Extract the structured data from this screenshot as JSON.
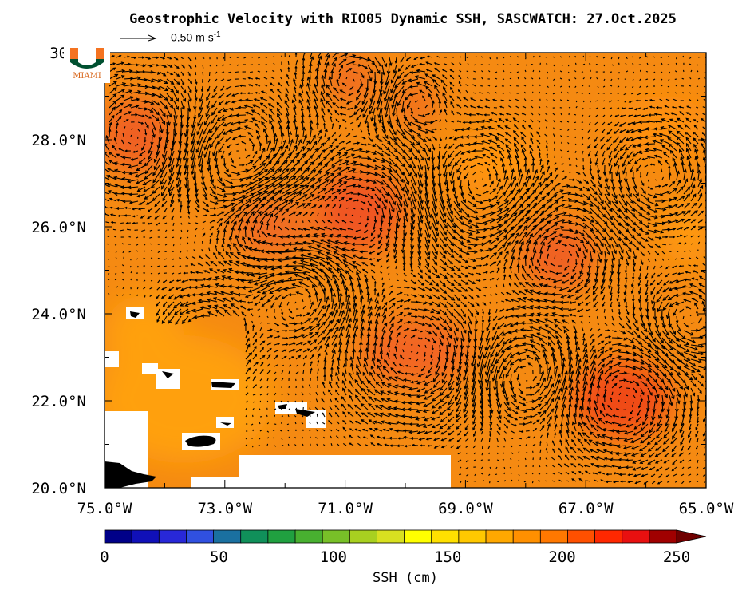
{
  "title": "Geostrophic Velocity with RIO05 Dynamic SSH, SASCWATCH: 27.Oct.2025",
  "reference_vector": {
    "label": "0.50 m s",
    "exponent": "-1"
  },
  "logo": {
    "text": "MIAMI",
    "colors": {
      "orange": "#f47321",
      "green": "#005030"
    }
  },
  "map": {
    "lon_range": [
      -75,
      -65
    ],
    "lat_range": [
      20,
      30
    ],
    "x_ticks": [
      "75.0°W",
      "73.0°W",
      "71.0°W",
      "69.0°W",
      "67.0°W",
      "65.0°W"
    ],
    "y_ticks": [
      "20.0°N",
      "22.0°N",
      "24.0°N",
      "26.0°N",
      "28.0°N",
      "30.0"
    ],
    "ocean_base_color": "#f58a12",
    "land_color": "#000000",
    "missing_color": "#ffffff"
  },
  "colorbar": {
    "ticks": [
      "0",
      "50",
      "100",
      "150",
      "200",
      "250"
    ],
    "label": "SSH (cm)",
    "min": 0,
    "max": 250,
    "colors": [
      "#000088",
      "#1010b8",
      "#2828d8",
      "#3050e0",
      "#1a70a0",
      "#10905a",
      "#20a040",
      "#48b030",
      "#78c028",
      "#a8d020",
      "#d8e020",
      "#ffff00",
      "#ffe000",
      "#ffc800",
      "#ffa800",
      "#ff9000",
      "#ff7800",
      "#ff5000",
      "#ff2800",
      "#e81010",
      "#a00000"
    ]
  }
}
